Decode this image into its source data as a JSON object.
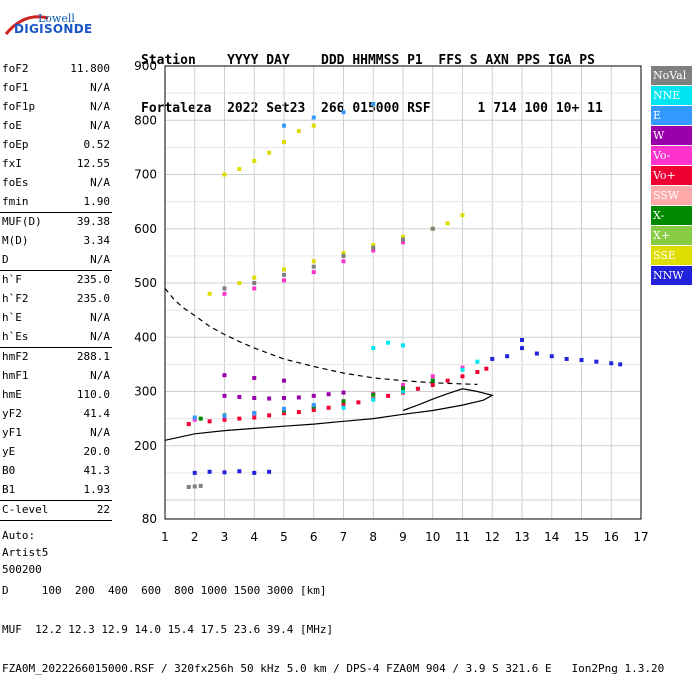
{
  "logo": {
    "line1": "Lowell",
    "line2": "DIGISONDE"
  },
  "header": {
    "line1": "Station    YYYY DAY    DDD HHMMSS P1  FFS S AXN PPS IGA PS",
    "line2": "Fortaleza  2022 Set23  266 015000 RSF      1 714 100 10+ 11"
  },
  "params_group1": [
    {
      "k": "foF2",
      "v": "11.800"
    },
    {
      "k": "foF1",
      "v": "N/A"
    },
    {
      "k": "foF1p",
      "v": "N/A"
    },
    {
      "k": "foE",
      "v": "N/A"
    },
    {
      "k": "foEp",
      "v": "0.52"
    },
    {
      "k": "fxI",
      "v": "12.55"
    },
    {
      "k": "foEs",
      "v": "N/A"
    },
    {
      "k": "fmin",
      "v": "1.90"
    }
  ],
  "params_group2": [
    {
      "k": "MUF(D)",
      "v": "39.38"
    },
    {
      "k": "M(D)",
      "v": "3.34"
    },
    {
      "k": "D",
      "v": "N/A"
    }
  ],
  "params_group3": [
    {
      "k": "h`F",
      "v": "235.0"
    },
    {
      "k": "h`F2",
      "v": "235.0"
    },
    {
      "k": "h`E",
      "v": "N/A"
    },
    {
      "k": "h`Es",
      "v": "N/A"
    }
  ],
  "params_group4": [
    {
      "k": "hmF2",
      "v": "288.1"
    },
    {
      "k": "hmF1",
      "v": "N/A"
    },
    {
      "k": "hmE",
      "v": "110.0"
    },
    {
      "k": "yF2",
      "v": "41.4"
    },
    {
      "k": "yF1",
      "v": "N/A"
    },
    {
      "k": "yE",
      "v": "20.0"
    },
    {
      "k": "B0",
      "v": "41.3"
    },
    {
      "k": "B1",
      "v": "1.93"
    }
  ],
  "params_group5": [
    {
      "k": "C-level",
      "v": "22"
    }
  ],
  "auto": {
    "label": "Auto:",
    "artist": "Artist5",
    "ver": "500200"
  },
  "bottom": {
    "line1": "D     100  200  400  600  800 1000 1500 3000 [km]",
    "line2": "MUF  12.2 12.3 12.9 14.0 15.4 17.5 23.6 39.4 [MHz]",
    "line3": "FZA0M_2022266015000.RSF / 320fx256h 50 kHz 5.0 km / DPS-4 FZA0M 904 / 3.9 S 321.6 E   Ion2Png 1.3.20"
  },
  "legend": [
    {
      "label": "NoVal",
      "color": "#808080"
    },
    {
      "label": "NNE",
      "color": "#00e6f0"
    },
    {
      "label": "E",
      "color": "#3399ff"
    },
    {
      "label": "W",
      "color": "#9900aa"
    },
    {
      "label": "Vo-",
      "color": "#ff33cc"
    },
    {
      "label": "Vo+",
      "color": "#ee0033"
    },
    {
      "label": "SSW",
      "color": "#ffaaaa"
    },
    {
      "label": "X-",
      "color": "#008800"
    },
    {
      "label": "X+",
      "color": "#88cc44"
    },
    {
      "label": "SSE",
      "color": "#dddd00"
    },
    {
      "label": "NNW",
      "color": "#2222dd"
    }
  ],
  "chart_data": {
    "type": "scatter",
    "xlim": [
      1,
      17
    ],
    "ylim": [
      80,
      900
    ],
    "x_ticks": [
      1,
      2,
      3,
      4,
      5,
      6,
      7,
      8,
      9,
      10,
      11,
      12,
      13,
      14,
      15,
      16,
      17
    ],
    "y_ticks": [
      80,
      100,
      200,
      300,
      400,
      500,
      600,
      700,
      800,
      900
    ],
    "y_tick_labels": [
      "80",
      "",
      "200",
      "300",
      "400",
      "500",
      "600",
      "700",
      "800",
      "900"
    ],
    "grid": true,
    "series": [
      {
        "name": "Vo+",
        "color": "#ee0033",
        "x": [
          1.8,
          2.5,
          3.0,
          3.5,
          4.0,
          4.5,
          5.0,
          5.5,
          6.0,
          6.5,
          7.0,
          7.5,
          8.0,
          8.5,
          9.0,
          9.5,
          10.0,
          10.5,
          11.0,
          11.5,
          11.8
        ],
        "y": [
          240,
          245,
          248,
          250,
          252,
          256,
          260,
          262,
          266,
          270,
          275,
          280,
          286,
          292,
          298,
          305,
          312,
          320,
          328,
          336,
          342
        ]
      },
      {
        "name": "Vo-",
        "color": "#ff33cc",
        "x": [
          2.0,
          3.0,
          4.0,
          5.0,
          6.0,
          7.0,
          8.0,
          9.0,
          10.0,
          11.0,
          3.0,
          4.0,
          5.0,
          6.0,
          7.0,
          8.0,
          9.0
        ],
        "y": [
          248,
          254,
          258,
          264,
          272,
          282,
          296,
          312,
          328,
          344,
          480,
          490,
          505,
          520,
          540,
          560,
          575
        ]
      },
      {
        "name": "NNE",
        "color": "#00e6f0",
        "x": [
          7.0,
          8.0,
          9.0,
          10.0,
          11.0,
          11.5,
          8.0,
          8.5,
          9.0
        ],
        "y": [
          270,
          285,
          300,
          320,
          340,
          355,
          380,
          390,
          385
        ]
      },
      {
        "name": "W",
        "color": "#9900aa",
        "x": [
          3.0,
          3.5,
          4.0,
          4.5,
          5.0,
          5.5,
          6.0,
          6.5,
          7.0,
          3.0,
          4.0,
          5.0
        ],
        "y": [
          292,
          290,
          288,
          287,
          288,
          289,
          292,
          295,
          298,
          330,
          325,
          320
        ]
      },
      {
        "name": "SSE",
        "color": "#dddd00",
        "x": [
          2.5,
          3.0,
          3.5,
          4.0,
          5.0,
          6.0,
          7.0,
          8.0,
          9.0,
          10.0,
          3.0,
          3.5,
          4.0,
          4.5,
          5.0,
          5.5,
          6.0,
          10.5,
          11.0
        ],
        "y": [
          480,
          490,
          500,
          510,
          525,
          540,
          555,
          570,
          585,
          600,
          700,
          710,
          725,
          740,
          760,
          780,
          790,
          610,
          625
        ]
      },
      {
        "name": "NNW",
        "color": "#2222dd",
        "x": [
          12.0,
          12.5,
          13.0,
          13.5,
          14.0,
          14.5,
          15.0,
          15.5,
          16.0,
          16.3,
          13.0,
          2.0,
          2.5,
          3.0,
          3.5,
          4.0,
          4.5
        ],
        "y": [
          360,
          365,
          380,
          370,
          365,
          360,
          358,
          355,
          352,
          350,
          395,
          150,
          152,
          151,
          153,
          150,
          152
        ]
      },
      {
        "name": "X-",
        "color": "#008800",
        "x": [
          2.2,
          3.0,
          4.0,
          5.0,
          6.0,
          7.0,
          8.0,
          9.0,
          10.0
        ],
        "y": [
          250,
          256,
          260,
          265,
          272,
          282,
          294,
          306,
          320
        ]
      },
      {
        "name": "E",
        "color": "#3399ff",
        "x": [
          2.0,
          3.0,
          4.0,
          5.0,
          6.0,
          5.0,
          6.0,
          7.0,
          8.0
        ],
        "y": [
          252,
          255,
          260,
          268,
          275,
          790,
          805,
          815,
          830
        ]
      },
      {
        "name": "NoVal",
        "color": "#808080",
        "x": [
          3.0,
          4.0,
          5.0,
          6.0,
          7.0,
          8.0,
          9.0,
          10.0,
          1.8,
          2.0,
          2.2
        ],
        "y": [
          490,
          500,
          515,
          530,
          550,
          565,
          580,
          600,
          124,
          125,
          126
        ]
      }
    ],
    "curves": [
      {
        "style": "dashed",
        "x": [
          1.0,
          1.3,
          1.6,
          2.0,
          2.5,
          3.0,
          3.5,
          4.0,
          5.0,
          6.0,
          7.0,
          8.0,
          9.0,
          10.0,
          11.0,
          11.5
        ],
        "y": [
          490,
          470,
          455,
          440,
          420,
          405,
          392,
          380,
          360,
          346,
          334,
          325,
          320,
          316,
          314,
          313
        ]
      },
      {
        "style": "solid",
        "x": [
          1.0,
          2.0,
          3.0,
          4.0,
          5.0,
          6.0,
          7.0,
          8.0,
          9.0,
          10.0,
          11.0,
          11.7,
          12.0,
          11.5,
          11.0,
          10.5,
          10.0,
          9.5,
          9.0
        ],
        "y": [
          210,
          222,
          228,
          232,
          236,
          240,
          245,
          250,
          258,
          265,
          275,
          284,
          293,
          300,
          305,
          296,
          286,
          275,
          265
        ]
      }
    ]
  }
}
